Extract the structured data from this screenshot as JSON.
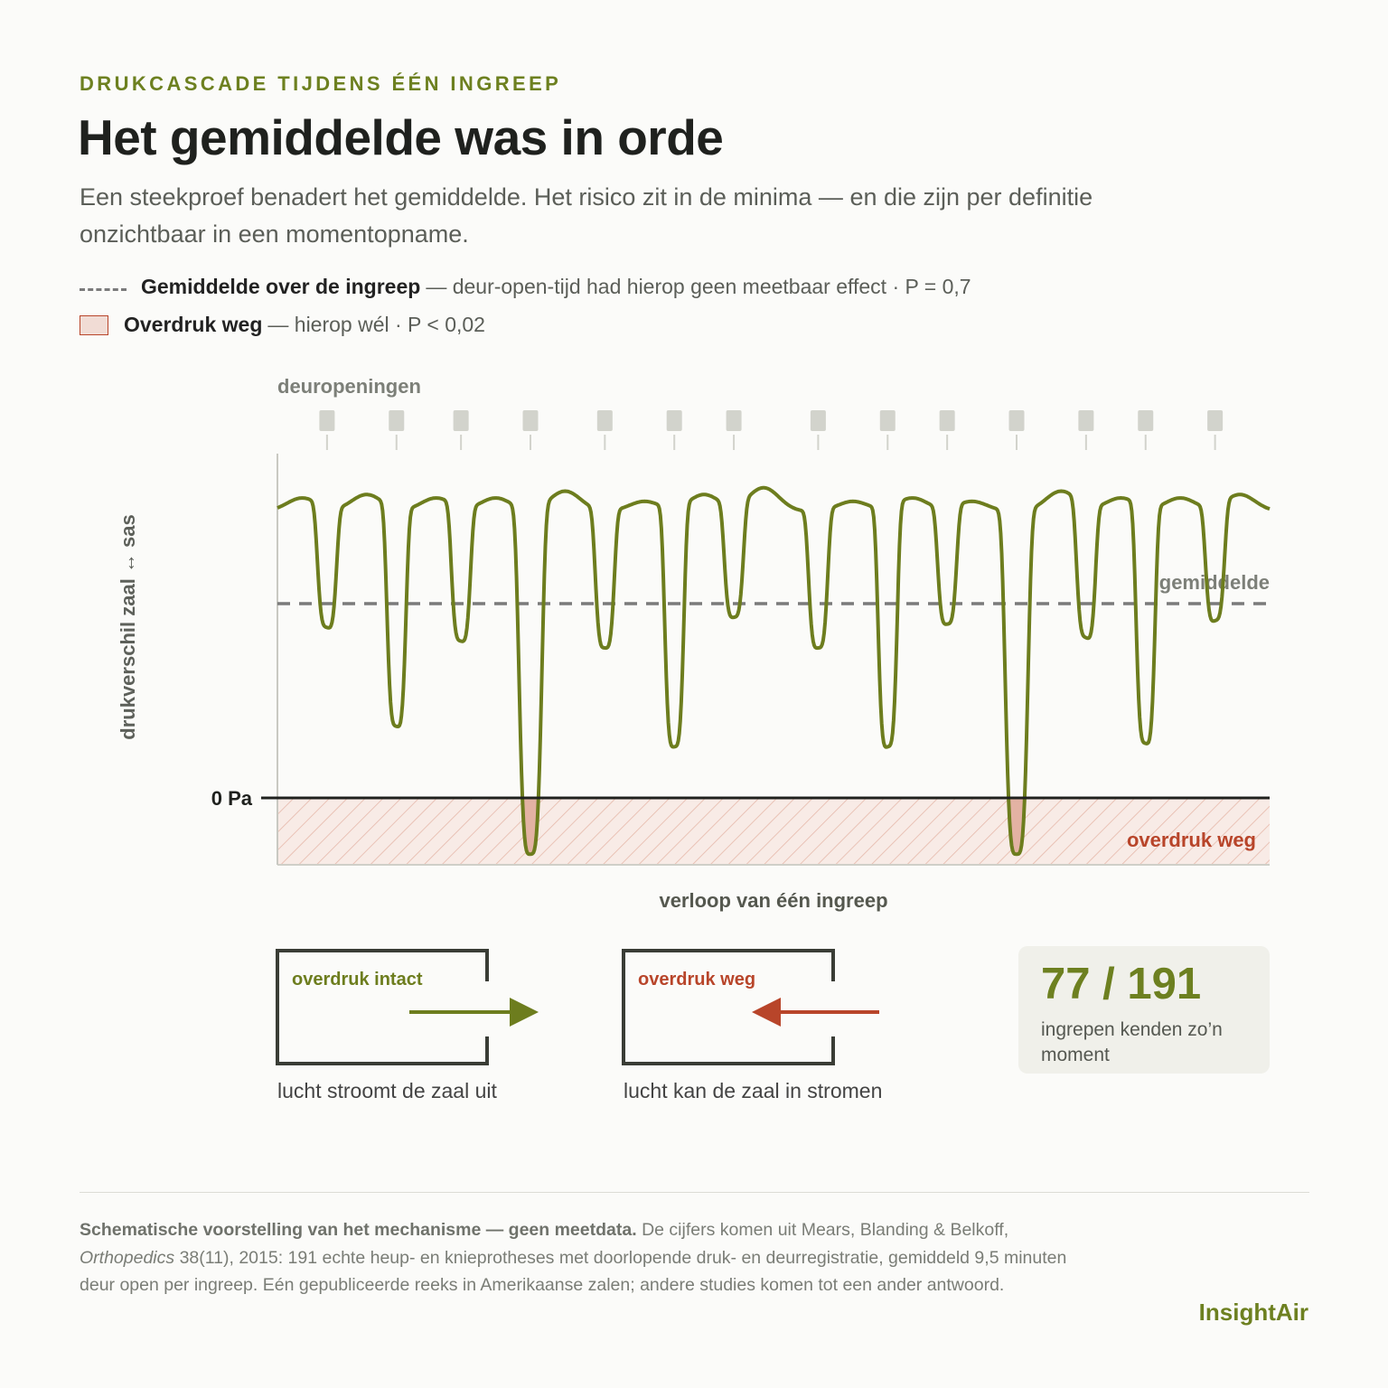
{
  "header": {
    "kicker": "DRUKCASCADE TIJDENS ÉÉN INGREEP",
    "title": "Het gemiddelde was in orde",
    "subtitle": "Een steekproef benadert het gemiddelde. Het risico zit in de minima — en die zijn per definitie onzichtbaar in een momentopname."
  },
  "legend": {
    "mean_bold": "Gemiddelde over de ingreep",
    "mean_rest": "— deur-open-tijd had hierop geen meetbaar effect · P = 0,7",
    "loss_bold": "Overdruk weg",
    "loss_rest": "— hierop wél · P < 0,02"
  },
  "chart_data": {
    "type": "line",
    "schematic": true,
    "door_label": "deuropeningen",
    "ylabel": "drukverschil zaal ↔ sas",
    "xlabel": "verloop van één ingreep",
    "zero_label": "0 Pa",
    "mean_label": "gemiddelde",
    "loss_label": "overdruk weg",
    "x_range": [
      0,
      100
    ],
    "y_range": [
      -20,
      100
    ],
    "mean_value": 57,
    "door_openings": [
      5,
      12,
      18.5,
      25.5,
      33,
      40,
      46,
      54.5,
      61.5,
      67.5,
      74.5,
      81.5,
      87.5,
      94.5
    ],
    "dips": [
      {
        "x": 5,
        "y": 50
      },
      {
        "x": 12,
        "y": 21
      },
      {
        "x": 18.5,
        "y": 46
      },
      {
        "x": 25.5,
        "y": -16.5
      },
      {
        "x": 33,
        "y": 44
      },
      {
        "x": 40,
        "y": 15
      },
      {
        "x": 46,
        "y": 53
      },
      {
        "x": 54.5,
        "y": 44
      },
      {
        "x": 61.5,
        "y": 15
      },
      {
        "x": 67.5,
        "y": 51
      },
      {
        "x": 74.5,
        "y": -16.5
      },
      {
        "x": 81.5,
        "y": 47
      },
      {
        "x": 87.5,
        "y": 16
      },
      {
        "x": 94.5,
        "y": 52
      }
    ],
    "line_color": "#6d7d1e",
    "mean_color": "#7b7b7b",
    "loss_color": "#b8452a"
  },
  "diagrams": {
    "intact_label": "overdruk intact",
    "intact_caption": "lucht stroomt de zaal uit",
    "lost_label": "overdruk weg",
    "lost_caption": "lucht kan de zaal in stromen"
  },
  "stat": {
    "value": "77 / 191",
    "description": "ingrepen kenden zo’n moment"
  },
  "footer": {
    "source_bold": "Schematische voorstelling van het mechanisme — geen meetdata.",
    "source_pre": "De cijfers komen uit Mears, Blanding & Belkoff,",
    "journal": "Orthopedics",
    "source_post": "38(11), 2015: 191 echte heup- en knieprotheses met doorlopende druk- en deurregistratie, gemiddeld 9,5 minuten deur open per ingreep. Eén gepubliceerde reeks in Amerikaanse zalen; andere studies komen tot een ander antwoord.",
    "brand": "InsightAir"
  }
}
